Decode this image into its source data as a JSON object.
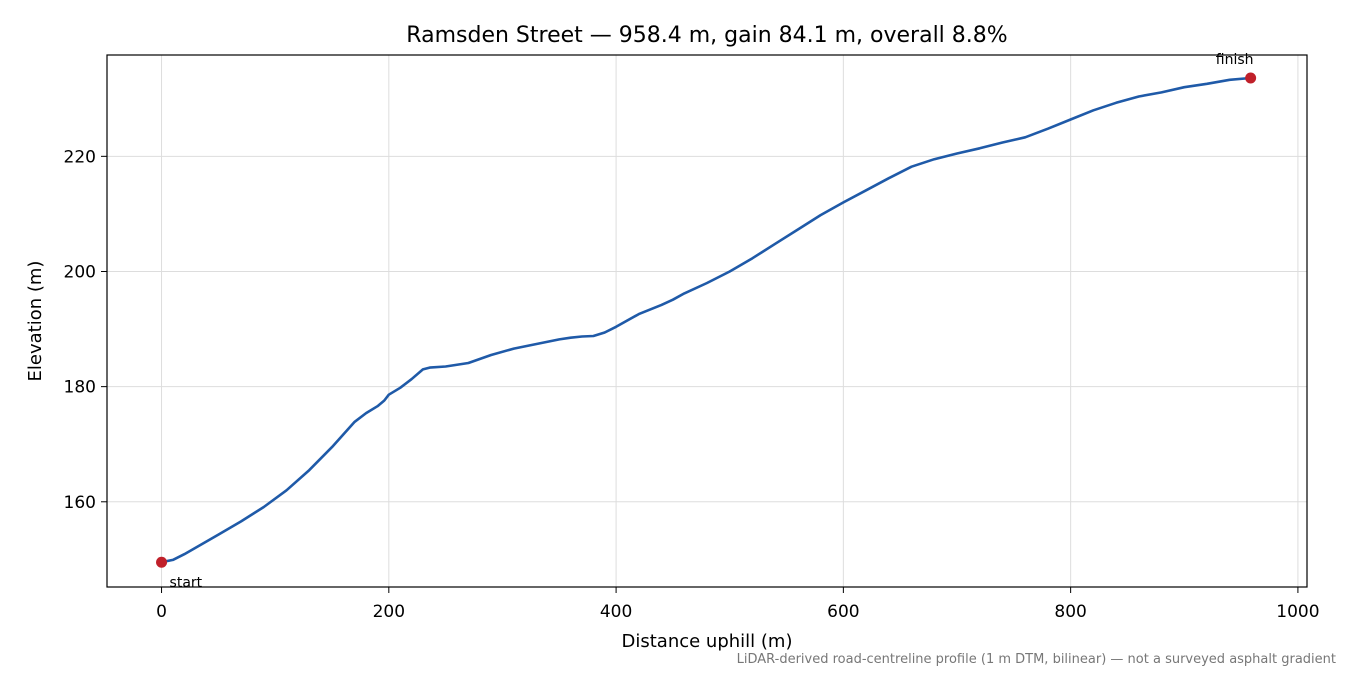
{
  "chart_data": {
    "type": "line",
    "title": "Ramsden Street — 958.4 m, gain 84.1 m, overall 8.8%",
    "xlabel": "Distance uphill (m)",
    "ylabel": "Elevation (m)",
    "xlim": [
      -48,
      1008
    ],
    "ylim": [
      145.2,
      237.6
    ],
    "xticks": [
      0,
      200,
      400,
      600,
      800,
      1000
    ],
    "yticks": [
      160,
      180,
      200,
      220
    ],
    "grid": true,
    "line_color": "#1f5aa8",
    "marker_color": "#c0202a",
    "series": [
      {
        "x": [
          0,
          10,
          20,
          30,
          50,
          70,
          90,
          110,
          130,
          150,
          160,
          170,
          180,
          190,
          196,
          200,
          210,
          220,
          230,
          236,
          250,
          270,
          290,
          310,
          330,
          350,
          360,
          370,
          380,
          390,
          400,
          420,
          440,
          450,
          460,
          480,
          500,
          520,
          540,
          560,
          580,
          600,
          620,
          640,
          660,
          680,
          700,
          720,
          740,
          760,
          780,
          800,
          820,
          840,
          860,
          880,
          900,
          920,
          940,
          958.4
        ],
        "y": [
          149.5,
          149.9,
          150.9,
          152,
          154.3,
          156.6,
          159.1,
          162,
          165.5,
          169.5,
          171.7,
          173.9,
          175.4,
          176.6,
          177.6,
          178.6,
          179.8,
          181.3,
          183,
          183.3,
          183.5,
          184.1,
          185.5,
          186.6,
          187.4,
          188.2,
          188.5,
          188.7,
          188.8,
          189.4,
          190.4,
          192.6,
          194.2,
          195.1,
          196.2,
          198,
          200,
          202.3,
          204.8,
          207.3,
          209.8,
          212,
          214.1,
          216.2,
          218.2,
          219.5,
          220.5,
          221.4,
          222.4,
          223.3,
          224.8,
          226.4,
          228,
          229.3,
          230.4,
          231.1,
          232,
          232.6,
          233.3,
          233.6
        ]
      }
    ],
    "annotations": [
      {
        "text": "start",
        "x": 0,
        "y": 149.5
      },
      {
        "text": "finish",
        "x": 958.4,
        "y": 233.6
      }
    ],
    "footnote": "LiDAR-derived road-centreline profile (1 m DTM, bilinear) — not a surveyed asphalt gradient"
  }
}
